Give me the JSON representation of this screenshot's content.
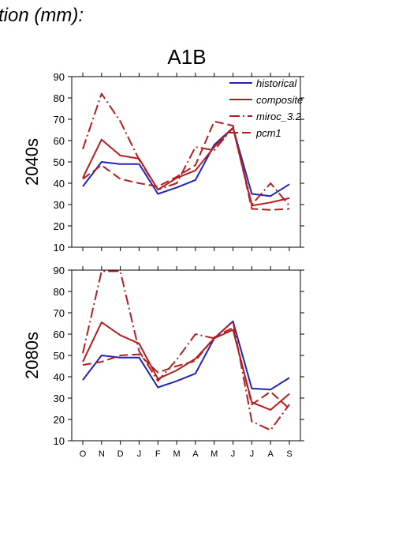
{
  "header": {
    "title_fragment": "tion (mm):"
  },
  "chart_data": {
    "type": "line",
    "title": "A1B",
    "x_categories": [
      "O",
      "N",
      "D",
      "J",
      "F",
      "M",
      "A",
      "M",
      "J",
      "J",
      "A",
      "S"
    ],
    "ylim": [
      10,
      90
    ],
    "yticks": [
      10,
      20,
      30,
      40,
      50,
      60,
      70,
      80,
      90
    ],
    "legend": {
      "placement": "top-right"
    },
    "colors": {
      "historical": "#2323b4",
      "scenarios": "#b41e1e"
    },
    "panels": [
      {
        "row_label": "2040s",
        "series": [
          {
            "name": "historical",
            "style": "solid",
            "values": [
              38.5,
              50,
              49,
              49,
              35,
              38,
              41.5,
              58,
              66,
              35,
              34,
              39.5
            ]
          },
          {
            "name": "composite",
            "style": "solid",
            "values": [
              42.5,
              60.5,
              53,
              51.5,
              37,
              42.5,
              46,
              57,
              66,
              29.5,
              31,
              33
            ]
          },
          {
            "name": "miroc_3.2",
            "style": "dashdot",
            "values": [
              56,
              82,
              69,
              51,
              37,
              40,
              57,
              55.5,
              66,
              30,
              40,
              29.5
            ]
          },
          {
            "name": "pcm1",
            "style": "dashed",
            "values": [
              42,
              48.5,
              42,
              40,
              38.5,
              43,
              48.5,
              69,
              67,
              28,
              27.5,
              28
            ]
          }
        ]
      },
      {
        "row_label": "2080s",
        "series": [
          {
            "name": "historical",
            "style": "solid",
            "values": [
              38.5,
              50,
              49,
              49,
              35,
              38,
              41.5,
              58,
              66,
              34.5,
              34,
              39.5
            ]
          },
          {
            "name": "composite",
            "style": "solid",
            "values": [
              47,
              65.5,
              59.5,
              55.5,
              39,
              43,
              48.5,
              58,
              62,
              28,
              24.5,
              32
            ]
          },
          {
            "name": "miroc_3.2",
            "style": "dashdot",
            "values": [
              51,
              89.5,
              89.5,
              52,
              38,
              48,
              60,
              58,
              66,
              19,
              15,
              27
            ]
          },
          {
            "name": "pcm1",
            "style": "dashed",
            "values": [
              45.5,
              47,
              50,
              50.5,
              42,
              45,
              47.5,
              58.5,
              63,
              27,
              33,
              25
            ]
          }
        ]
      }
    ]
  }
}
